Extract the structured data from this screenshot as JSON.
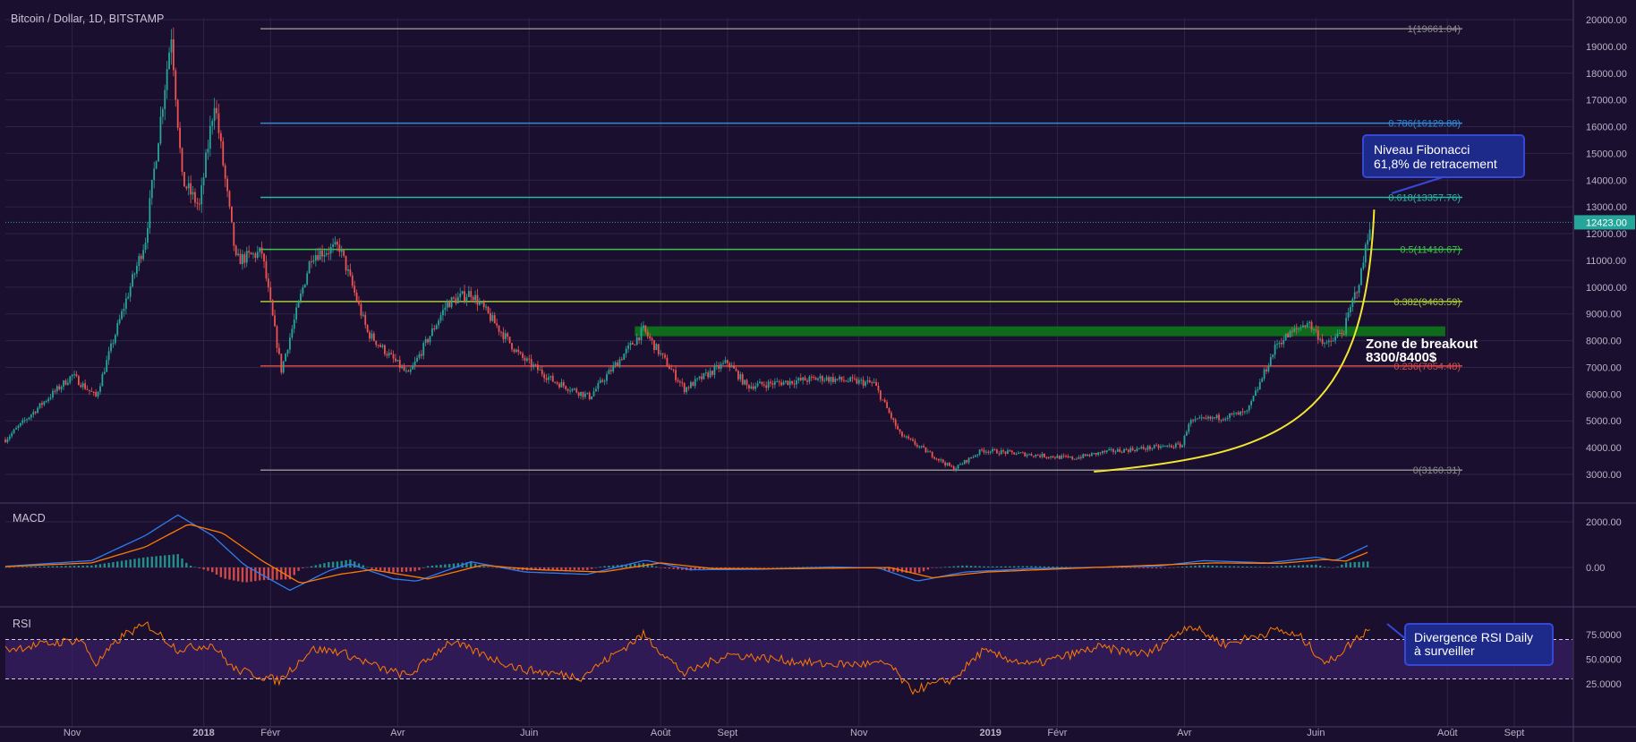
{
  "colors": {
    "background": "#1a0f2e",
    "grid": "#2e2448",
    "text": "#b8b3c8",
    "candle_up": "#26a69a",
    "candle_down": "#ef5350",
    "macd_line": "#2f7cf0",
    "signal_line": "#ff7a00",
    "rsi_line": "#ff7a00",
    "rsi_band": "#3a1f66",
    "price_tag": "#26a69a",
    "curve": "#f2e532",
    "zone": "#0f6b1c",
    "annotation_fill": "#1e2a8a",
    "annotation_border": "#3548d8"
  },
  "chart_data": [
    {
      "type": "candlestick",
      "title": "Bitcoin / Dollar, 1D, BITSTAMP",
      "ylim": [
        2400,
        20400
      ],
      "y_ticks": [
        "20000.00",
        "19000.00",
        "18000.00",
        "17000.00",
        "16000.00",
        "15000.00",
        "14000.00",
        "13000.00",
        "12000.00",
        "11000.00",
        "10000.00",
        "9000.00",
        "8000.00",
        "7000.00",
        "6000.00",
        "5000.00",
        "4000.00",
        "3000.00"
      ],
      "x_ticks": [
        "Nov",
        "2018",
        "Févr",
        "Avr",
        "Juin",
        "Août",
        "Sept",
        "Nov",
        "2019",
        "Févr",
        "Avr",
        "Juin",
        "Août",
        "Sept"
      ],
      "last_price": "12423.00",
      "close_path": [
        [
          "2017-10-01",
          4300
        ],
        [
          "2017-10-20",
          5800
        ],
        [
          "2017-11-01",
          6700
        ],
        [
          "2017-11-12",
          5900
        ],
        [
          "2017-11-20",
          8000
        ],
        [
          "2017-12-05",
          11800
        ],
        [
          "2017-12-17",
          19500
        ],
        [
          "2017-12-22",
          14000
        ],
        [
          "2017-12-30",
          13000
        ],
        [
          "2018-01-06",
          17000
        ],
        [
          "2018-01-16",
          11000
        ],
        [
          "2018-01-28",
          11300
        ],
        [
          "2018-02-06",
          6900
        ],
        [
          "2018-02-20",
          11200
        ],
        [
          "2018-03-05",
          11500
        ],
        [
          "2018-03-18",
          8300
        ],
        [
          "2018-04-06",
          6700
        ],
        [
          "2018-04-24",
          9400
        ],
        [
          "2018-05-05",
          9800
        ],
        [
          "2018-05-28",
          7400
        ],
        [
          "2018-06-12",
          6500
        ],
        [
          "2018-06-29",
          5900
        ],
        [
          "2018-07-24",
          8400
        ],
        [
          "2018-08-12",
          6200
        ],
        [
          "2018-09-01",
          7200
        ],
        [
          "2018-09-10",
          6300
        ],
        [
          "2018-10-15",
          6600
        ],
        [
          "2018-11-08",
          6400
        ],
        [
          "2018-11-20",
          4500
        ],
        [
          "2018-12-15",
          3200
        ],
        [
          "2018-12-28",
          3900
        ],
        [
          "2019-02-08",
          3600
        ],
        [
          "2019-02-24",
          3850
        ],
        [
          "2019-03-31",
          4100
        ],
        [
          "2019-04-03",
          4950
        ],
        [
          "2019-04-30",
          5300
        ],
        [
          "2019-05-14",
          7900
        ],
        [
          "2019-05-28",
          8700
        ],
        [
          "2019-06-06",
          7800
        ],
        [
          "2019-06-14",
          8400
        ],
        [
          "2019-06-22",
          10500
        ],
        [
          "2019-06-26",
          12423
        ]
      ],
      "fibonacci": [
        {
          "label": "1(19661.04)",
          "value": 19661.04,
          "color": "#8c8c8c"
        },
        {
          "label": "0.786(16129.88)",
          "value": 16129.88,
          "color": "#2f8bd6"
        },
        {
          "label": "0.618(13357.76)",
          "value": 13357.76,
          "color": "#26b8a0"
        },
        {
          "label": "0.5(11410.67)",
          "value": 11410.67,
          "color": "#3fc24b"
        },
        {
          "label": "0.382(9463.59)",
          "value": 9463.59,
          "color": "#a7c93a"
        },
        {
          "label": "0.236(7054.48)",
          "value": 7054.48,
          "color": "#d84a4a"
        },
        {
          "label": "0(3160.31)",
          "value": 3160.31,
          "color": "#8c8c8c"
        }
      ],
      "breakout_zone": {
        "low": 8300,
        "high": 8400,
        "from": "2018-07-20",
        "to": "2019-07-31"
      },
      "annotations": [
        {
          "lines": [
            "Niveau Fibonacci",
            "61,8% de retracement"
          ]
        },
        {
          "lines": [
            "Zone de breakout",
            "8300/8400$"
          ]
        }
      ]
    },
    {
      "type": "line",
      "title": "MACD",
      "y_ticks": [
        "2000.00",
        "0.00"
      ],
      "ylim": [
        -700,
        2800
      ],
      "series": [
        {
          "values_path": [
            [
              "2017-10-01",
              50
            ],
            [
              "2017-11-10",
              300
            ],
            [
              "2017-12-05",
              1400
            ],
            [
              "2017-12-20",
              2300
            ],
            [
              "2018-01-05",
              1400
            ],
            [
              "2018-01-20",
              100
            ],
            [
              "2018-02-10",
              -1000
            ],
            [
              "2018-02-28",
              -150
            ],
            [
              "2018-03-10",
              150
            ],
            [
              "2018-03-30",
              -500
            ],
            [
              "2018-04-10",
              -600
            ],
            [
              "2018-05-05",
              250
            ],
            [
              "2018-05-30",
              -200
            ],
            [
              "2018-06-28",
              -300
            ],
            [
              "2018-07-25",
              320
            ],
            [
              "2018-08-15",
              -100
            ],
            [
              "2018-09-15",
              -80
            ],
            [
              "2018-10-20",
              20
            ],
            [
              "2018-11-10",
              -20
            ],
            [
              "2018-11-28",
              -600
            ],
            [
              "2018-12-20",
              -200
            ],
            [
              "2019-01-20",
              -50
            ],
            [
              "2019-03-20",
              60
            ],
            [
              "2019-04-10",
              300
            ],
            [
              "2019-05-10",
              200
            ],
            [
              "2019-06-01",
              450
            ],
            [
              "2019-06-10",
              300
            ],
            [
              "2019-06-26",
              1000
            ]
          ]
        },
        {
          "values_path": [
            [
              "2017-10-01",
              40
            ],
            [
              "2017-11-10",
              200
            ],
            [
              "2017-12-05",
              900
            ],
            [
              "2017-12-25",
              1900
            ],
            [
              "2018-01-10",
              1500
            ],
            [
              "2018-01-28",
              300
            ],
            [
              "2018-02-15",
              -700
            ],
            [
              "2018-03-05",
              -300
            ],
            [
              "2018-03-20",
              -100
            ],
            [
              "2018-04-15",
              -500
            ],
            [
              "2018-05-10",
              100
            ],
            [
              "2018-06-05",
              -100
            ],
            [
              "2018-07-05",
              -200
            ],
            [
              "2018-08-01",
              200
            ],
            [
              "2018-08-25",
              -50
            ],
            [
              "2018-09-25",
              -60
            ],
            [
              "2018-11-15",
              0
            ],
            [
              "2018-12-05",
              -450
            ],
            [
              "2018-12-30",
              -200
            ],
            [
              "2019-02-10",
              -30
            ],
            [
              "2019-04-15",
              200
            ],
            [
              "2019-05-15",
              180
            ],
            [
              "2019-06-05",
              350
            ],
            [
              "2019-06-15",
              280
            ],
            [
              "2019-06-26",
              700
            ]
          ]
        }
      ]
    },
    {
      "type": "line",
      "title": "RSI",
      "y_ticks": [
        "75.0000",
        "50.0000",
        "25.0000"
      ],
      "ylim": [
        10,
        90
      ],
      "band": [
        30,
        70
      ],
      "series": [
        {
          "values_path": [
            [
              "2017-10-01",
              60
            ],
            [
              "2017-11-05",
              70
            ],
            [
              "2017-11-12",
              45
            ],
            [
              "2017-11-25",
              75
            ],
            [
              "2017-12-06",
              85
            ],
            [
              "2017-12-20",
              60
            ],
            [
              "2018-01-05",
              65
            ],
            [
              "2018-01-15",
              40
            ],
            [
              "2018-02-05",
              28
            ],
            [
              "2018-02-20",
              60
            ],
            [
              "2018-03-05",
              58
            ],
            [
              "2018-03-25",
              40
            ],
            [
              "2018-04-06",
              33
            ],
            [
              "2018-04-25",
              68
            ],
            [
              "2018-05-28",
              40
            ],
            [
              "2018-06-25",
              32
            ],
            [
              "2018-07-24",
              75
            ],
            [
              "2018-08-12",
              35
            ],
            [
              "2018-09-01",
              55
            ],
            [
              "2018-10-15",
              45
            ],
            [
              "2018-11-15",
              45
            ],
            [
              "2018-11-25",
              18
            ],
            [
              "2018-12-15",
              30
            ],
            [
              "2018-12-28",
              58
            ],
            [
              "2019-01-20",
              44
            ],
            [
              "2019-02-20",
              62
            ],
            [
              "2019-03-15",
              55
            ],
            [
              "2019-04-03",
              85
            ],
            [
              "2019-04-20",
              65
            ],
            [
              "2019-05-14",
              80
            ],
            [
              "2019-05-25",
              72
            ],
            [
              "2019-06-06",
              45
            ],
            [
              "2019-06-14",
              60
            ],
            [
              "2019-06-26",
              82
            ]
          ]
        }
      ],
      "annotation": {
        "lines": [
          "Divergence RSI Daily",
          "à surveiller"
        ]
      }
    }
  ]
}
